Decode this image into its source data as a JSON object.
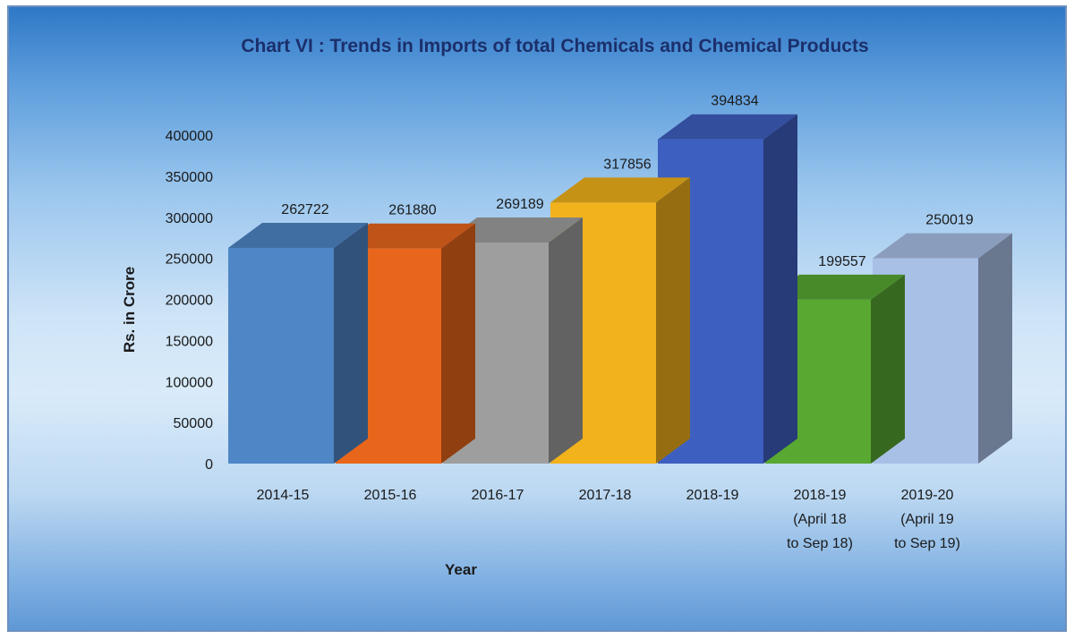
{
  "chart_data": {
    "type": "bar",
    "title": "Chart VI : Trends in Imports of total Chemicals and Chemical Products",
    "xlabel": "Year",
    "ylabel": "Rs. in Crore",
    "ylim": [
      0,
      400000
    ],
    "yticks": [
      "0",
      "50000",
      "100000",
      "150000",
      "200000",
      "250000",
      "300000",
      "350000",
      "400000"
    ],
    "grid": false,
    "legend": "none",
    "categories": [
      [
        "2014-15"
      ],
      [
        "2015-16"
      ],
      [
        "2016-17"
      ],
      [
        "2017-18"
      ],
      [
        "2018-19"
      ],
      [
        "2018-19",
        "(April 18",
        "to Sep 18)"
      ],
      [
        "2019-20",
        "(April 19",
        "to Sep 19)"
      ]
    ],
    "values": [
      262722,
      261880,
      269189,
      317856,
      394834,
      199557,
      250019
    ],
    "data_labels": [
      "262722",
      "261880",
      "269189",
      "317856",
      "394834",
      "199557",
      "250019"
    ],
    "colors": [
      "#4f86c6",
      "#e8661c",
      "#9e9e9e",
      "#f2b21b",
      "#3d5fc0",
      "#58a832",
      "#a9c0e6"
    ]
  }
}
